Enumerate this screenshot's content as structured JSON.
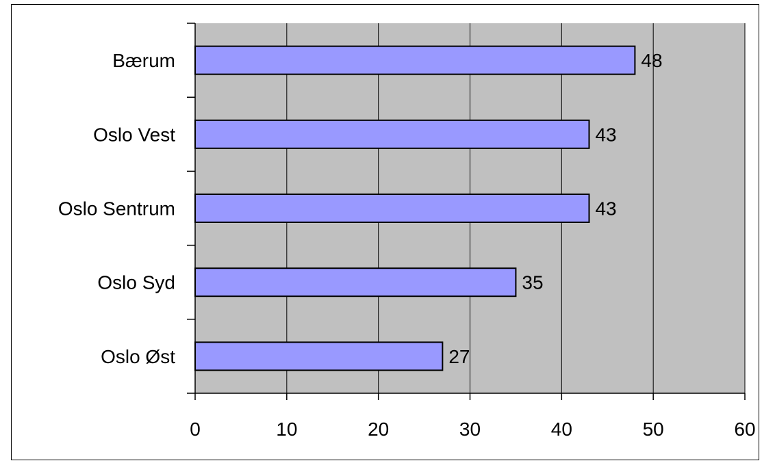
{
  "chart_data": {
    "type": "bar",
    "orientation": "horizontal",
    "categories": [
      "Bærum",
      "Oslo Vest",
      "Oslo Sentrum",
      "Oslo Syd",
      "Oslo Øst"
    ],
    "values": [
      48,
      43,
      43,
      35,
      27
    ],
    "data_labels": [
      "48",
      "43",
      "43",
      "35",
      "27"
    ],
    "xlim": [
      0,
      60
    ],
    "x_ticks": [
      "0",
      "10",
      "20",
      "30",
      "40",
      "50",
      "60"
    ],
    "x_tick_values": [
      0,
      10,
      20,
      30,
      40,
      50,
      60
    ],
    "grid": true,
    "legend": "none",
    "colors": {
      "bar_fill": "#9999ff",
      "bar_stroke": "#000000",
      "plot_background": "#c0c0c0",
      "gridline": "#000000"
    }
  }
}
